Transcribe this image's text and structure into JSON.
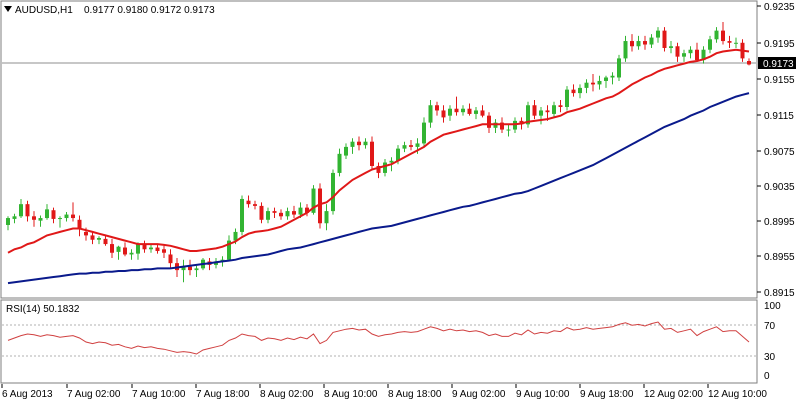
{
  "header": {
    "dropdown_icon": "triangle-down",
    "symbol": "AUDUSD,H1",
    "ohlc": "0.9177 0.9180 0.9172 0.9173"
  },
  "price_axis": {
    "ticks": [
      "0.9235",
      "0.9195",
      "0.9155",
      "0.9115",
      "0.9075",
      "0.9035",
      "0.8995",
      "0.8955",
      "0.8915"
    ],
    "current_price": "0.9173"
  },
  "rsi": {
    "title": "RSI(14) 50.1832",
    "ticks": [
      "100",
      "70",
      "30",
      "0"
    ]
  },
  "time_axis": {
    "labels": [
      "6 Aug 2013",
      "7 Aug 02:00",
      "7 Aug 10:00",
      "7 Aug 18:00",
      "8 Aug 02:00",
      "8 Aug 10:00",
      "8 Aug 18:00",
      "9 Aug 02:00",
      "9 Aug 10:00",
      "9 Aug 18:00",
      "12 Aug 02:00",
      "12 Aug 10:00"
    ]
  },
  "colors": {
    "bull": "#32b432",
    "bear": "#e01818",
    "ma_fast": "#e01818",
    "ma_slow": "#0a1a8c",
    "rsi_line": "#d04040",
    "frame": "#7f7f7f"
  },
  "chart_data": {
    "type": "candlestick",
    "symbol": "AUDUSD",
    "timeframe": "H1",
    "ylim": [
      0.8905,
      0.9245
    ],
    "candles_ohlc": [
      [
        0.8988,
        0.8998,
        0.8982,
        0.8996
      ],
      [
        0.8995,
        0.9001,
        0.899,
        0.8998
      ],
      [
        0.8998,
        0.9018,
        0.8996,
        0.9012
      ],
      [
        0.9012,
        0.9016,
        0.8992,
        0.8998
      ],
      [
        0.8998,
        0.9004,
        0.8986,
        0.8994
      ],
      [
        0.8993,
        0.8999,
        0.8986,
        0.8996
      ],
      [
        0.8996,
        0.9012,
        0.8994,
        0.9006
      ],
      [
        0.9005,
        0.9008,
        0.899,
        0.8995
      ],
      [
        0.8995,
        0.8998,
        0.8985,
        0.8996
      ],
      [
        0.8996,
        0.9003,
        0.8992,
        0.9
      ],
      [
        0.9,
        0.9014,
        0.8992,
        0.8996
      ],
      [
        0.8994,
        0.8999,
        0.8975,
        0.8983
      ],
      [
        0.898,
        0.8985,
        0.897,
        0.8976
      ],
      [
        0.8976,
        0.898,
        0.8966,
        0.8971
      ],
      [
        0.8971,
        0.8975,
        0.8966,
        0.8973
      ],
      [
        0.8972,
        0.8977,
        0.8964,
        0.8966
      ],
      [
        0.8966,
        0.8972,
        0.895,
        0.8956
      ],
      [
        0.8957,
        0.8964,
        0.8948,
        0.8963
      ],
      [
        0.8962,
        0.8968,
        0.8952,
        0.8954
      ],
      [
        0.8954,
        0.896,
        0.8948,
        0.8956
      ],
      [
        0.8955,
        0.8968,
        0.8948,
        0.8966
      ],
      [
        0.8966,
        0.897,
        0.8956,
        0.896
      ],
      [
        0.896,
        0.8966,
        0.8956,
        0.8962
      ],
      [
        0.8962,
        0.8966,
        0.8955,
        0.8958
      ],
      [
        0.896,
        0.8964,
        0.895,
        0.8956
      ],
      [
        0.8954,
        0.896,
        0.8938,
        0.8944
      ],
      [
        0.8944,
        0.895,
        0.8928,
        0.8936
      ],
      [
        0.8936,
        0.8948,
        0.8922,
        0.894
      ],
      [
        0.894,
        0.8948,
        0.893,
        0.8936
      ],
      [
        0.8936,
        0.8941,
        0.8928,
        0.8938
      ],
      [
        0.8938,
        0.895,
        0.8936,
        0.8948
      ],
      [
        0.8946,
        0.895,
        0.8936,
        0.8942
      ],
      [
        0.8942,
        0.895,
        0.8938,
        0.8946
      ],
      [
        0.8946,
        0.8952,
        0.894,
        0.8948
      ],
      [
        0.8948,
        0.8976,
        0.8946,
        0.897
      ],
      [
        0.897,
        0.8984,
        0.8966,
        0.898
      ],
      [
        0.898,
        0.9022,
        0.8976,
        0.9018
      ],
      [
        0.9016,
        0.9022,
        0.9008,
        0.9012
      ],
      [
        0.9012,
        0.9016,
        0.9006,
        0.901
      ],
      [
        0.901,
        0.9014,
        0.899,
        0.8994
      ],
      [
        0.8994,
        0.9008,
        0.899,
        0.9004
      ],
      [
        0.9004,
        0.9008,
        0.8996,
        0.9002
      ],
      [
        0.9002,
        0.9006,
        0.8994,
        0.8998
      ],
      [
        0.8998,
        0.9008,
        0.8994,
        0.9004
      ],
      [
        0.9004,
        0.901,
        0.8996,
        0.9
      ],
      [
        0.9,
        0.9014,
        0.8996,
        0.9008
      ],
      [
        0.9008,
        0.9012,
        0.8998,
        0.9002
      ],
      [
        0.9002,
        0.9034,
        0.9,
        0.903
      ],
      [
        0.903,
        0.9036,
        0.8984,
        0.899
      ],
      [
        0.899,
        0.9012,
        0.8982,
        0.9004
      ],
      [
        0.9004,
        0.9052,
        0.9,
        0.9048
      ],
      [
        0.9048,
        0.9076,
        0.9044,
        0.907
      ],
      [
        0.9068,
        0.9082,
        0.9064,
        0.9078
      ],
      [
        0.9078,
        0.9088,
        0.907,
        0.9084
      ],
      [
        0.9084,
        0.909,
        0.9074,
        0.908
      ],
      [
        0.908,
        0.9088,
        0.9076,
        0.9084
      ],
      [
        0.9084,
        0.909,
        0.9052,
        0.9056
      ],
      [
        0.9056,
        0.906,
        0.9042,
        0.9048
      ],
      [
        0.9048,
        0.9064,
        0.9044,
        0.906
      ],
      [
        0.906,
        0.9066,
        0.905,
        0.9062
      ],
      [
        0.9062,
        0.908,
        0.9058,
        0.9076
      ],
      [
        0.9076,
        0.9084,
        0.9072,
        0.908
      ],
      [
        0.908,
        0.9086,
        0.9074,
        0.9078
      ],
      [
        0.9078,
        0.9088,
        0.907,
        0.9082
      ],
      [
        0.9082,
        0.9112,
        0.9078,
        0.9106
      ],
      [
        0.9106,
        0.9132,
        0.91,
        0.9126
      ],
      [
        0.9126,
        0.913,
        0.9114,
        0.912
      ],
      [
        0.912,
        0.9126,
        0.9106,
        0.9112
      ],
      [
        0.9114,
        0.9126,
        0.9108,
        0.9122
      ],
      [
        0.9122,
        0.9136,
        0.9114,
        0.9118
      ],
      [
        0.9118,
        0.9126,
        0.9114,
        0.9122
      ],
      [
        0.9122,
        0.9128,
        0.9114,
        0.9116
      ],
      [
        0.9116,
        0.9124,
        0.911,
        0.912
      ],
      [
        0.912,
        0.9126,
        0.9112,
        0.9114
      ],
      [
        0.9114,
        0.9118,
        0.9094,
        0.91
      ],
      [
        0.91,
        0.911,
        0.9094,
        0.9106
      ],
      [
        0.9106,
        0.9112,
        0.9094,
        0.9098
      ],
      [
        0.9098,
        0.9104,
        0.909,
        0.9098
      ],
      [
        0.9098,
        0.9112,
        0.9094,
        0.9108
      ],
      [
        0.9108,
        0.9112,
        0.9098,
        0.9104
      ],
      [
        0.9104,
        0.913,
        0.91,
        0.9126
      ],
      [
        0.9126,
        0.9132,
        0.911,
        0.9114
      ],
      [
        0.9114,
        0.9124,
        0.9104,
        0.912
      ],
      [
        0.912,
        0.9126,
        0.9108,
        0.9118
      ],
      [
        0.9116,
        0.913,
        0.9112,
        0.9126
      ],
      [
        0.9126,
        0.9132,
        0.9118,
        0.9124
      ],
      [
        0.9124,
        0.9148,
        0.912,
        0.9144
      ],
      [
        0.9144,
        0.915,
        0.9136,
        0.914
      ],
      [
        0.914,
        0.915,
        0.9134,
        0.9146
      ],
      [
        0.9146,
        0.9156,
        0.914,
        0.9152
      ],
      [
        0.9152,
        0.9162,
        0.9142,
        0.915
      ],
      [
        0.915,
        0.916,
        0.9144,
        0.9154
      ],
      [
        0.9154,
        0.916,
        0.9146,
        0.9158
      ],
      [
        0.9158,
        0.9164,
        0.915,
        0.916
      ],
      [
        0.9158,
        0.9184,
        0.9154,
        0.918
      ],
      [
        0.918,
        0.9206,
        0.9176,
        0.92
      ],
      [
        0.92,
        0.9208,
        0.9188,
        0.9194
      ],
      [
        0.9194,
        0.9206,
        0.919,
        0.92
      ],
      [
        0.92,
        0.9206,
        0.919,
        0.9196
      ],
      [
        0.9196,
        0.9208,
        0.9192,
        0.9204
      ],
      [
        0.9204,
        0.9216,
        0.9198,
        0.9212
      ],
      [
        0.9212,
        0.9216,
        0.9188,
        0.9192
      ],
      [
        0.9192,
        0.92,
        0.9186,
        0.9194
      ],
      [
        0.9194,
        0.9198,
        0.9176,
        0.9182
      ],
      [
        0.9182,
        0.919,
        0.9176,
        0.9186
      ],
      [
        0.9186,
        0.9194,
        0.918,
        0.919
      ],
      [
        0.919,
        0.9198,
        0.9176,
        0.9178
      ],
      [
        0.9178,
        0.9194,
        0.9174,
        0.919
      ],
      [
        0.919,
        0.9206,
        0.9186,
        0.9202
      ],
      [
        0.9202,
        0.9216,
        0.9198,
        0.9212
      ],
      [
        0.9212,
        0.9222,
        0.9196,
        0.92
      ],
      [
        0.92,
        0.9206,
        0.9192,
        0.9198
      ],
      [
        0.9198,
        0.9204,
        0.9192,
        0.9198
      ],
      [
        0.9198,
        0.9202,
        0.9176,
        0.918
      ],
      [
        0.9177,
        0.918,
        0.9172,
        0.9173
      ]
    ],
    "series": [
      {
        "values": [
          0.8956,
          0.896,
          0.8962,
          0.8966,
          0.8968,
          0.8972,
          0.8976,
          0.8978,
          0.898,
          0.8982,
          0.8984,
          0.8984,
          0.8982,
          0.898,
          0.8978,
          0.8976,
          0.8974,
          0.8972,
          0.897,
          0.8968,
          0.8966,
          0.8966,
          0.8966,
          0.8966,
          0.8965,
          0.8964,
          0.8962,
          0.896,
          0.8958,
          0.8958,
          0.8959,
          0.896,
          0.8961,
          0.8963,
          0.8966,
          0.8969,
          0.8974,
          0.8978,
          0.898,
          0.8981,
          0.8982,
          0.8984,
          0.8986,
          0.899,
          0.8994,
          0.8998,
          0.9002,
          0.9008,
          0.9012,
          0.9014,
          0.902,
          0.9028,
          0.9034,
          0.904,
          0.9044,
          0.9048,
          0.9052,
          0.9054,
          0.9056,
          0.9058,
          0.9062,
          0.9066,
          0.907,
          0.9074,
          0.9078,
          0.9084,
          0.9088,
          0.9092,
          0.9094,
          0.9096,
          0.9098,
          0.91,
          0.9102,
          0.9104,
          0.9104,
          0.9104,
          0.9104,
          0.9104,
          0.9104,
          0.9105,
          0.9107,
          0.9108,
          0.9109,
          0.911,
          0.9112,
          0.9114,
          0.9118,
          0.912,
          0.9122,
          0.9125,
          0.9128,
          0.9131,
          0.9134,
          0.9136,
          0.914,
          0.9145,
          0.915,
          0.9154,
          0.9158,
          0.9161,
          0.9165,
          0.9168,
          0.917,
          0.9172,
          0.9174,
          0.9176,
          0.9177,
          0.9179,
          0.9182,
          0.9186,
          0.9188,
          0.9189,
          0.919,
          0.9189,
          0.9188
        ]
      },
      {
        "values": [
          0.8921,
          0.8922,
          0.8923,
          0.8924,
          0.8925,
          0.8926,
          0.8927,
          0.8928,
          0.8929,
          0.893,
          0.8931,
          0.8932,
          0.8932,
          0.8933,
          0.8933,
          0.8934,
          0.8934,
          0.8935,
          0.8935,
          0.8936,
          0.8936,
          0.8937,
          0.8937,
          0.8938,
          0.8938,
          0.8938,
          0.8939,
          0.894,
          0.8941,
          0.8942,
          0.8943,
          0.8944,
          0.8945,
          0.8946,
          0.8947,
          0.8948,
          0.895,
          0.8951,
          0.8952,
          0.8953,
          0.8954,
          0.8956,
          0.8958,
          0.896,
          0.8961,
          0.8962,
          0.8964,
          0.8966,
          0.8968,
          0.897,
          0.8972,
          0.8974,
          0.8976,
          0.8978,
          0.898,
          0.8982,
          0.8984,
          0.8985,
          0.8986,
          0.8987,
          0.8989,
          0.8991,
          0.8993,
          0.8995,
          0.8997,
          0.8999,
          0.9001,
          0.9003,
          0.9005,
          0.9007,
          0.9009,
          0.901,
          0.9012,
          0.9014,
          0.9016,
          0.9018,
          0.902,
          0.9022,
          0.9024,
          0.9025,
          0.9027,
          0.903,
          0.9033,
          0.9036,
          0.9039,
          0.9042,
          0.9045,
          0.9048,
          0.9051,
          0.9054,
          0.9057,
          0.9061,
          0.9065,
          0.9069,
          0.9073,
          0.9077,
          0.9081,
          0.9085,
          0.9089,
          0.9093,
          0.9097,
          0.9101,
          0.9104,
          0.9107,
          0.911,
          0.9114,
          0.9117,
          0.912,
          0.9124,
          0.9127,
          0.913,
          0.9133,
          0.9136,
          0.9138,
          0.914
        ]
      }
    ],
    "rsi_values": [
      52,
      55,
      58,
      60,
      59,
      57,
      59,
      58,
      56,
      57,
      58,
      55,
      50,
      48,
      50,
      49,
      46,
      47,
      44,
      42,
      45,
      43,
      44,
      42,
      41,
      39,
      37,
      38,
      37,
      35,
      40,
      42,
      44,
      46,
      52,
      55,
      60,
      58,
      57,
      52,
      55,
      54,
      52,
      55,
      53,
      56,
      54,
      60,
      48,
      52,
      62,
      64,
      66,
      67,
      65,
      66,
      60,
      57,
      59,
      60,
      62,
      63,
      62,
      63,
      66,
      69,
      67,
      64,
      66,
      64,
      65,
      63,
      64,
      62,
      58,
      60,
      57,
      57,
      61,
      59,
      65,
      60,
      62,
      61,
      64,
      63,
      68,
      65,
      66,
      68,
      66,
      67,
      68,
      69,
      72,
      74,
      71,
      72,
      70,
      73,
      75,
      66,
      67,
      62,
      64,
      66,
      58,
      63,
      66,
      69,
      63,
      64,
      64,
      57,
      50
    ]
  }
}
